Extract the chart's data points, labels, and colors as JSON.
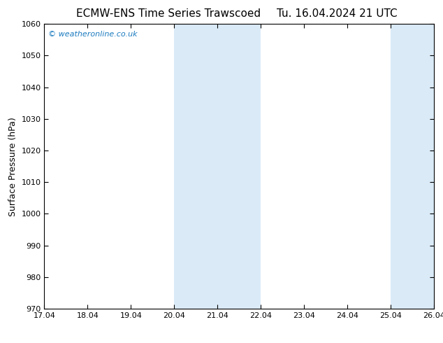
{
  "title_left": "ECMW-ENS Time Series Trawscoed",
  "title_right": "Tu. 16.04.2024 21 UTC",
  "ylabel": "Surface Pressure (hPa)",
  "xlim_start": 17.04,
  "xlim_end": 26.04,
  "ylim_bottom": 970,
  "ylim_top": 1060,
  "xtick_labels": [
    "17.04",
    "18.04",
    "19.04",
    "20.04",
    "21.04",
    "22.04",
    "23.04",
    "24.04",
    "25.04",
    "26.04"
  ],
  "xtick_positions": [
    17.04,
    18.04,
    19.04,
    20.04,
    21.04,
    22.04,
    23.04,
    24.04,
    25.04,
    26.04
  ],
  "ytick_positions": [
    970,
    980,
    990,
    1000,
    1010,
    1020,
    1030,
    1040,
    1050,
    1060
  ],
  "shaded_bands": [
    {
      "xmin": 20.04,
      "xmax": 22.04
    },
    {
      "xmin": 25.04,
      "xmax": 26.04
    }
  ],
  "shade_color": "#daeaf7",
  "background_color": "#ffffff",
  "plot_bg_color": "#ffffff",
  "watermark_text": "© weatheronline.co.uk",
  "watermark_color": "#1a7abf",
  "title_fontsize": 11,
  "tick_fontsize": 8,
  "ylabel_fontsize": 9,
  "watermark_fontsize": 8
}
